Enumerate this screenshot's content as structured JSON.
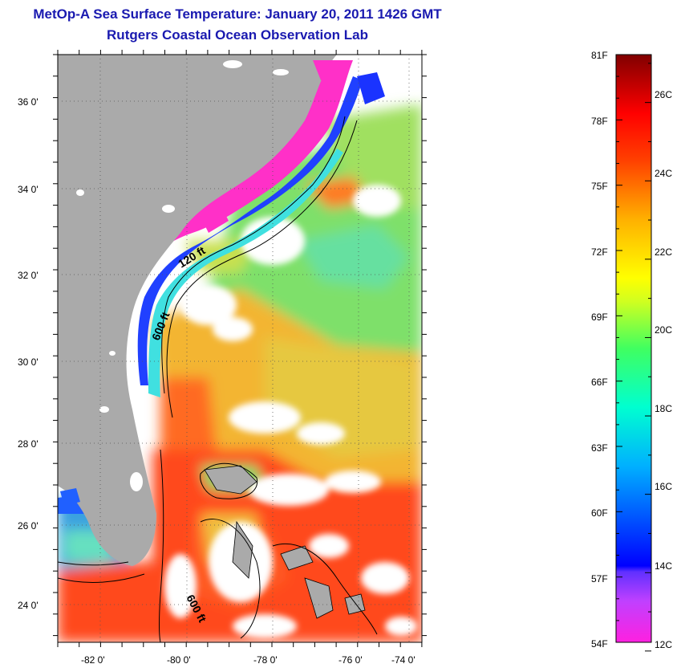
{
  "header": {
    "title": "MetOp-A Sea Surface Temperature:  January 20, 2011 1426 GMT",
    "subtitle": "Rutgers Coastal Ocean Observation Lab"
  },
  "map": {
    "lon_labels": [
      "-82 0'",
      "-80 0'",
      "-78 0'",
      "-76 0'",
      "-74 0'"
    ],
    "lat_labels": [
      "36 0'",
      "34 0'",
      "32 0'",
      "30 0'",
      "28 0'",
      "26 0'",
      "24 0'"
    ],
    "contour_labels": [
      "120 ft",
      "600 ft",
      "600 ft"
    ],
    "colors": {
      "land": "#aaaaaa",
      "cloud": "#ffffff",
      "cold": "#ff33cc",
      "cool": "#1a33ff",
      "mild": "#33e0e0",
      "green": "#66e066",
      "yellow": "#e8d040",
      "orange": "#ff9920",
      "warm": "#ff4a1a"
    }
  },
  "legend": {
    "fahrenheit": [
      "81F",
      "78F",
      "75F",
      "72F",
      "69F",
      "66F",
      "63F",
      "60F",
      "57F",
      "54F"
    ],
    "celsius": [
      "26C",
      "24C",
      "22C",
      "20C",
      "18C",
      "16C",
      "14C",
      "12C"
    ],
    "scale_min_f": 54,
    "scale_max_f": 81
  }
}
